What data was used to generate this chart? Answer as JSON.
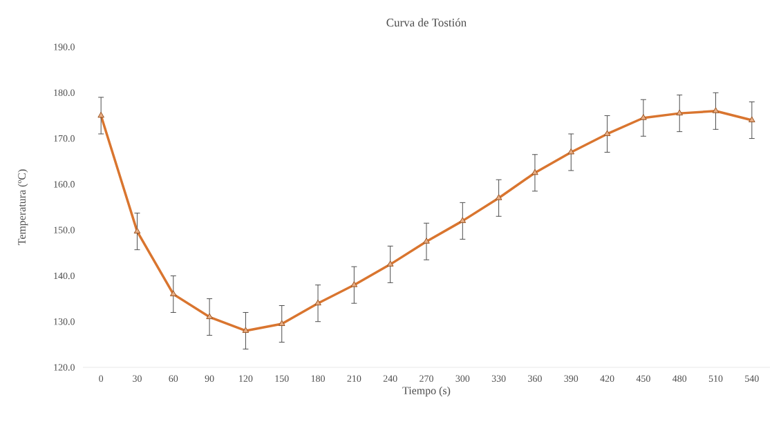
{
  "chart_data": {
    "type": "line",
    "title": "Curva de Tostión",
    "xlabel": "Tiempo (s)",
    "ylabel": "Temperatura (ºC)",
    "categories": [
      "0",
      "30",
      "60",
      "90",
      "120",
      "150",
      "180",
      "210",
      "240",
      "270",
      "300",
      "330",
      "360",
      "390",
      "420",
      "450",
      "480",
      "510",
      "540"
    ],
    "values": [
      175,
      149.7,
      136,
      131,
      128,
      129.5,
      134,
      138,
      142.5,
      147.5,
      152,
      157,
      162.5,
      167,
      171,
      174.5,
      175.5,
      176,
      174
    ],
    "errors": [
      4,
      4,
      4,
      4,
      4,
      4,
      4,
      4,
      4,
      4,
      4,
      4,
      4,
      4,
      4,
      4,
      4,
      4,
      4
    ],
    "color": "#d9752f",
    "marker": "triangle",
    "line_style": "solid",
    "grid": false,
    "ylim": [
      120,
      190
    ],
    "yticks": [
      {
        "value": 120,
        "label": "120.0"
      },
      {
        "value": 130,
        "label": "130.0"
      },
      {
        "value": 140,
        "label": "140.0"
      },
      {
        "value": 150,
        "label": "150.0"
      },
      {
        "value": 160,
        "label": "160.0"
      },
      {
        "value": 170,
        "label": "170.0"
      },
      {
        "value": 180,
        "label": "180.0"
      },
      {
        "value": 190,
        "label": "190.0"
      }
    ]
  }
}
